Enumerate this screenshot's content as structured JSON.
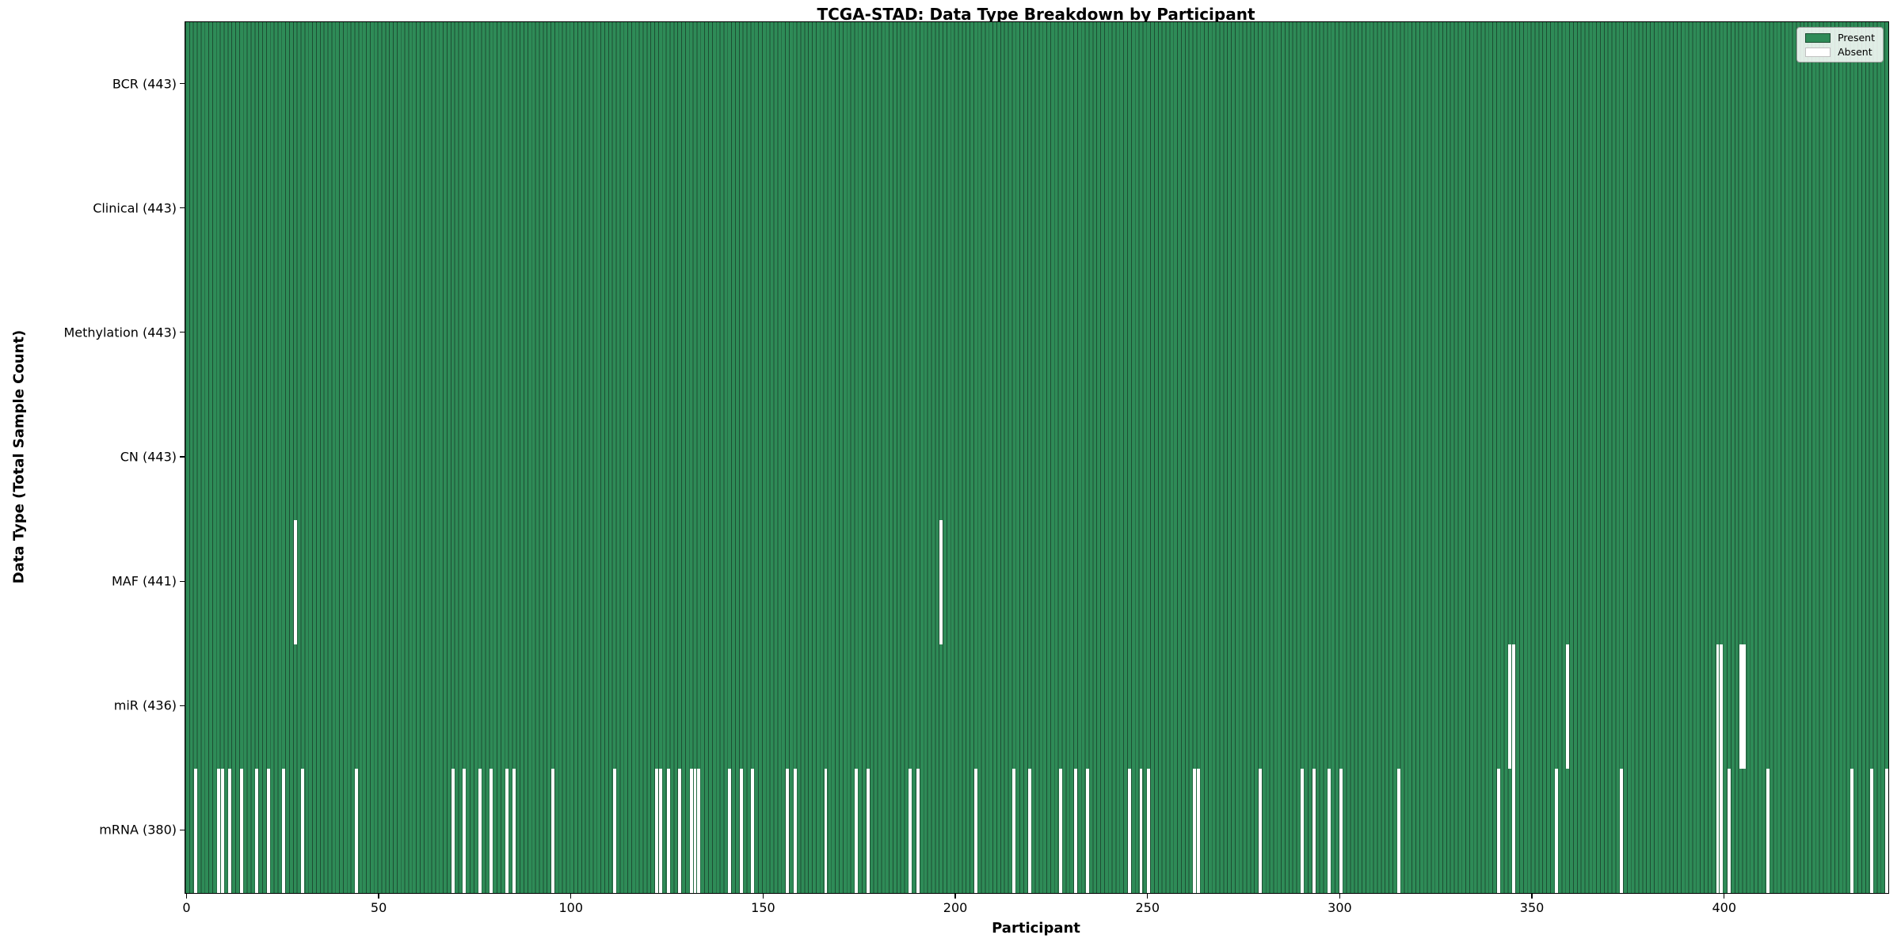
{
  "figure": {
    "title": "TCGA-STAD: Data Type Breakdown by Participant",
    "xlabel": "Participant",
    "ylabel": "Data Type (Total Sample Count)"
  },
  "legend": {
    "present_label": "Present",
    "absent_label": "Absent"
  },
  "chart_data": {
    "type": "heatmap",
    "title": "TCGA-STAD: Data Type Breakdown by Participant",
    "xlabel": "Participant",
    "ylabel": "Data Type (Total Sample Count)",
    "legend_entries": [
      "Present",
      "Absent"
    ],
    "legend_position": "upper right",
    "grid": false,
    "n_participants": 443,
    "x_range": [
      0,
      443
    ],
    "x_ticks": [
      0,
      50,
      100,
      150,
      200,
      250,
      300,
      350,
      400
    ],
    "colors": {
      "present": "#2e8b57",
      "absent": "#ffffff",
      "bar_edge": "#1d4e33",
      "row_separator": "#000000"
    },
    "rows": [
      {
        "name": "BCR",
        "label": "BCR (443)",
        "total": 443,
        "absent_participants": []
      },
      {
        "name": "Clinical",
        "label": "Clinical (443)",
        "total": 443,
        "absent_participants": []
      },
      {
        "name": "Methylation",
        "label": "Methylation (443)",
        "total": 443,
        "absent_participants": []
      },
      {
        "name": "CN",
        "label": "CN (443)",
        "total": 443,
        "absent_participants": []
      },
      {
        "name": "MAF",
        "label": "MAF (441)",
        "total": 441,
        "absent_participants": [
          28,
          196
        ]
      },
      {
        "name": "miR",
        "label": "miR (436)",
        "total": 436,
        "absent_participants": [
          344,
          345,
          359,
          398,
          399,
          404,
          405
        ]
      },
      {
        "name": "mRNA",
        "label": "mRNA (380)",
        "total": 380,
        "absent_participants": [
          2,
          8,
          9,
          11,
          14,
          18,
          21,
          25,
          30,
          44,
          69,
          72,
          76,
          79,
          83,
          85,
          95,
          111,
          122,
          123,
          125,
          128,
          131,
          132,
          133,
          141,
          144,
          147,
          156,
          158,
          166,
          174,
          177,
          188,
          190,
          205,
          215,
          219,
          227,
          231,
          234,
          245,
          248,
          250,
          262,
          263,
          279,
          290,
          293,
          297,
          300,
          315,
          341,
          345,
          356,
          373,
          398,
          399,
          401,
          411,
          433,
          438,
          442
        ]
      }
    ]
  }
}
